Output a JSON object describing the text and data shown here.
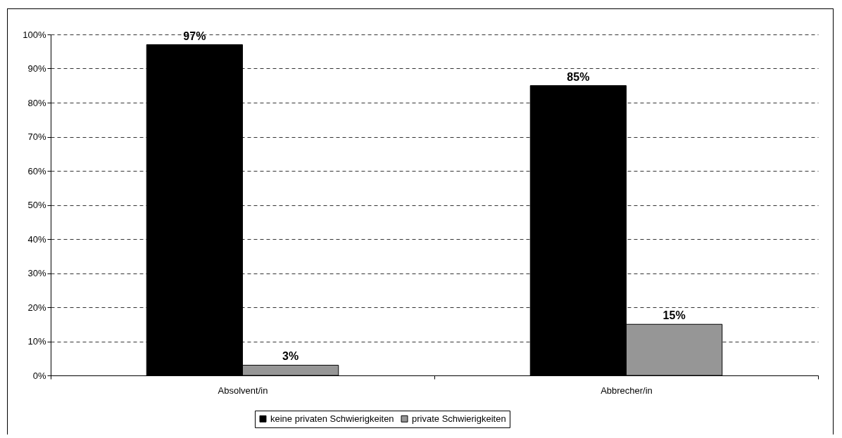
{
  "chart_data": {
    "type": "bar",
    "categories": [
      "Absolvent/in",
      "Abbrecher/in"
    ],
    "series": [
      {
        "name": "keine privaten Schwierigkeiten",
        "color": "#000000",
        "values": [
          97,
          85
        ],
        "value_labels": [
          "97%",
          "85%"
        ]
      },
      {
        "name": "private Schwierigkeiten",
        "color": "#969696",
        "values": [
          3,
          15
        ],
        "value_labels": [
          "3%",
          "15%"
        ]
      }
    ],
    "ylim": [
      0,
      100
    ],
    "yticks": [
      {
        "value": 0,
        "label": "0%"
      },
      {
        "value": 10,
        "label": "10%"
      },
      {
        "value": 20,
        "label": "20%"
      },
      {
        "value": 30,
        "label": "30%"
      },
      {
        "value": 40,
        "label": "40%"
      },
      {
        "value": 50,
        "label": "50%"
      },
      {
        "value": 60,
        "label": "60%"
      },
      {
        "value": 70,
        "label": "70%"
      },
      {
        "value": 80,
        "label": "80%"
      },
      {
        "value": 90,
        "label": "90%"
      },
      {
        "value": 100,
        "label": "100%"
      }
    ],
    "grid": "y",
    "legend": "bottom"
  }
}
